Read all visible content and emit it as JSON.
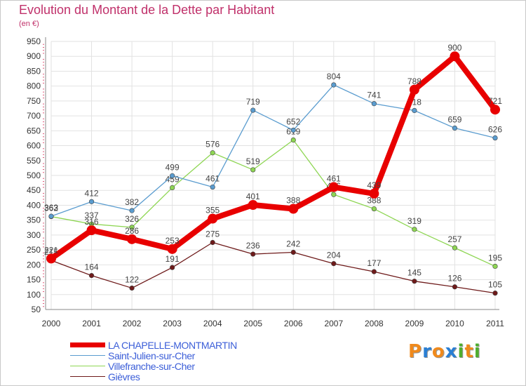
{
  "header": {
    "title": "Evolution du Montant de la Dette par Habitant",
    "unit": "(en €)"
  },
  "logo": {
    "text": "Proxiti",
    "colors": [
      "#f08a1c",
      "#2a7fd4",
      "#f08a1c",
      "#2a7fd4",
      "#4fae2f",
      "#f08a1c",
      "#4fae2f"
    ]
  },
  "chart_data": {
    "type": "line",
    "title": "Evolution du Montant de la Dette par Habitant",
    "subtitle": "(en €)",
    "xlabel": "",
    "ylabel": "",
    "x": [
      "2000",
      "2001",
      "2002",
      "2003",
      "2004",
      "2005",
      "2006",
      "2007",
      "2008",
      "2009",
      "2010",
      "2011"
    ],
    "ylim": [
      50,
      950
    ],
    "yticks": [
      50,
      100,
      150,
      200,
      250,
      300,
      350,
      400,
      450,
      500,
      550,
      600,
      650,
      700,
      750,
      800,
      850,
      900,
      950
    ],
    "grid": true,
    "legend_position": "bottom-left",
    "series": [
      {
        "name": "Gièvres",
        "color": "#6e1a1a",
        "values": [
          215,
          164,
          122,
          191,
          275,
          236,
          242,
          204,
          177,
          145,
          126,
          105
        ]
      },
      {
        "name": "Villefranche-sur-Cher",
        "color": "#8ed653",
        "values": [
          362,
          337,
          326,
          459,
          576,
          519,
          619,
          436,
          388,
          319,
          257,
          195
        ]
      },
      {
        "name": "Saint-Julien-sur-Cher",
        "color": "#5a9ccf",
        "values": [
          363,
          412,
          382,
          499,
          461,
          719,
          652,
          804,
          741,
          718,
          659,
          626
        ]
      },
      {
        "name": "LA CHAPELLE-MONTMARTIN",
        "color": "#e80000",
        "values": [
          221,
          316,
          286,
          253,
          355,
          401,
          388,
          461,
          439,
          788,
          900,
          721
        ]
      }
    ],
    "legend_order": [
      "LA CHAPELLE-MONTMARTIN",
      "Saint-Julien-sur-Cher",
      "Villefranche-sur-Cher",
      "Gièvres"
    ]
  }
}
